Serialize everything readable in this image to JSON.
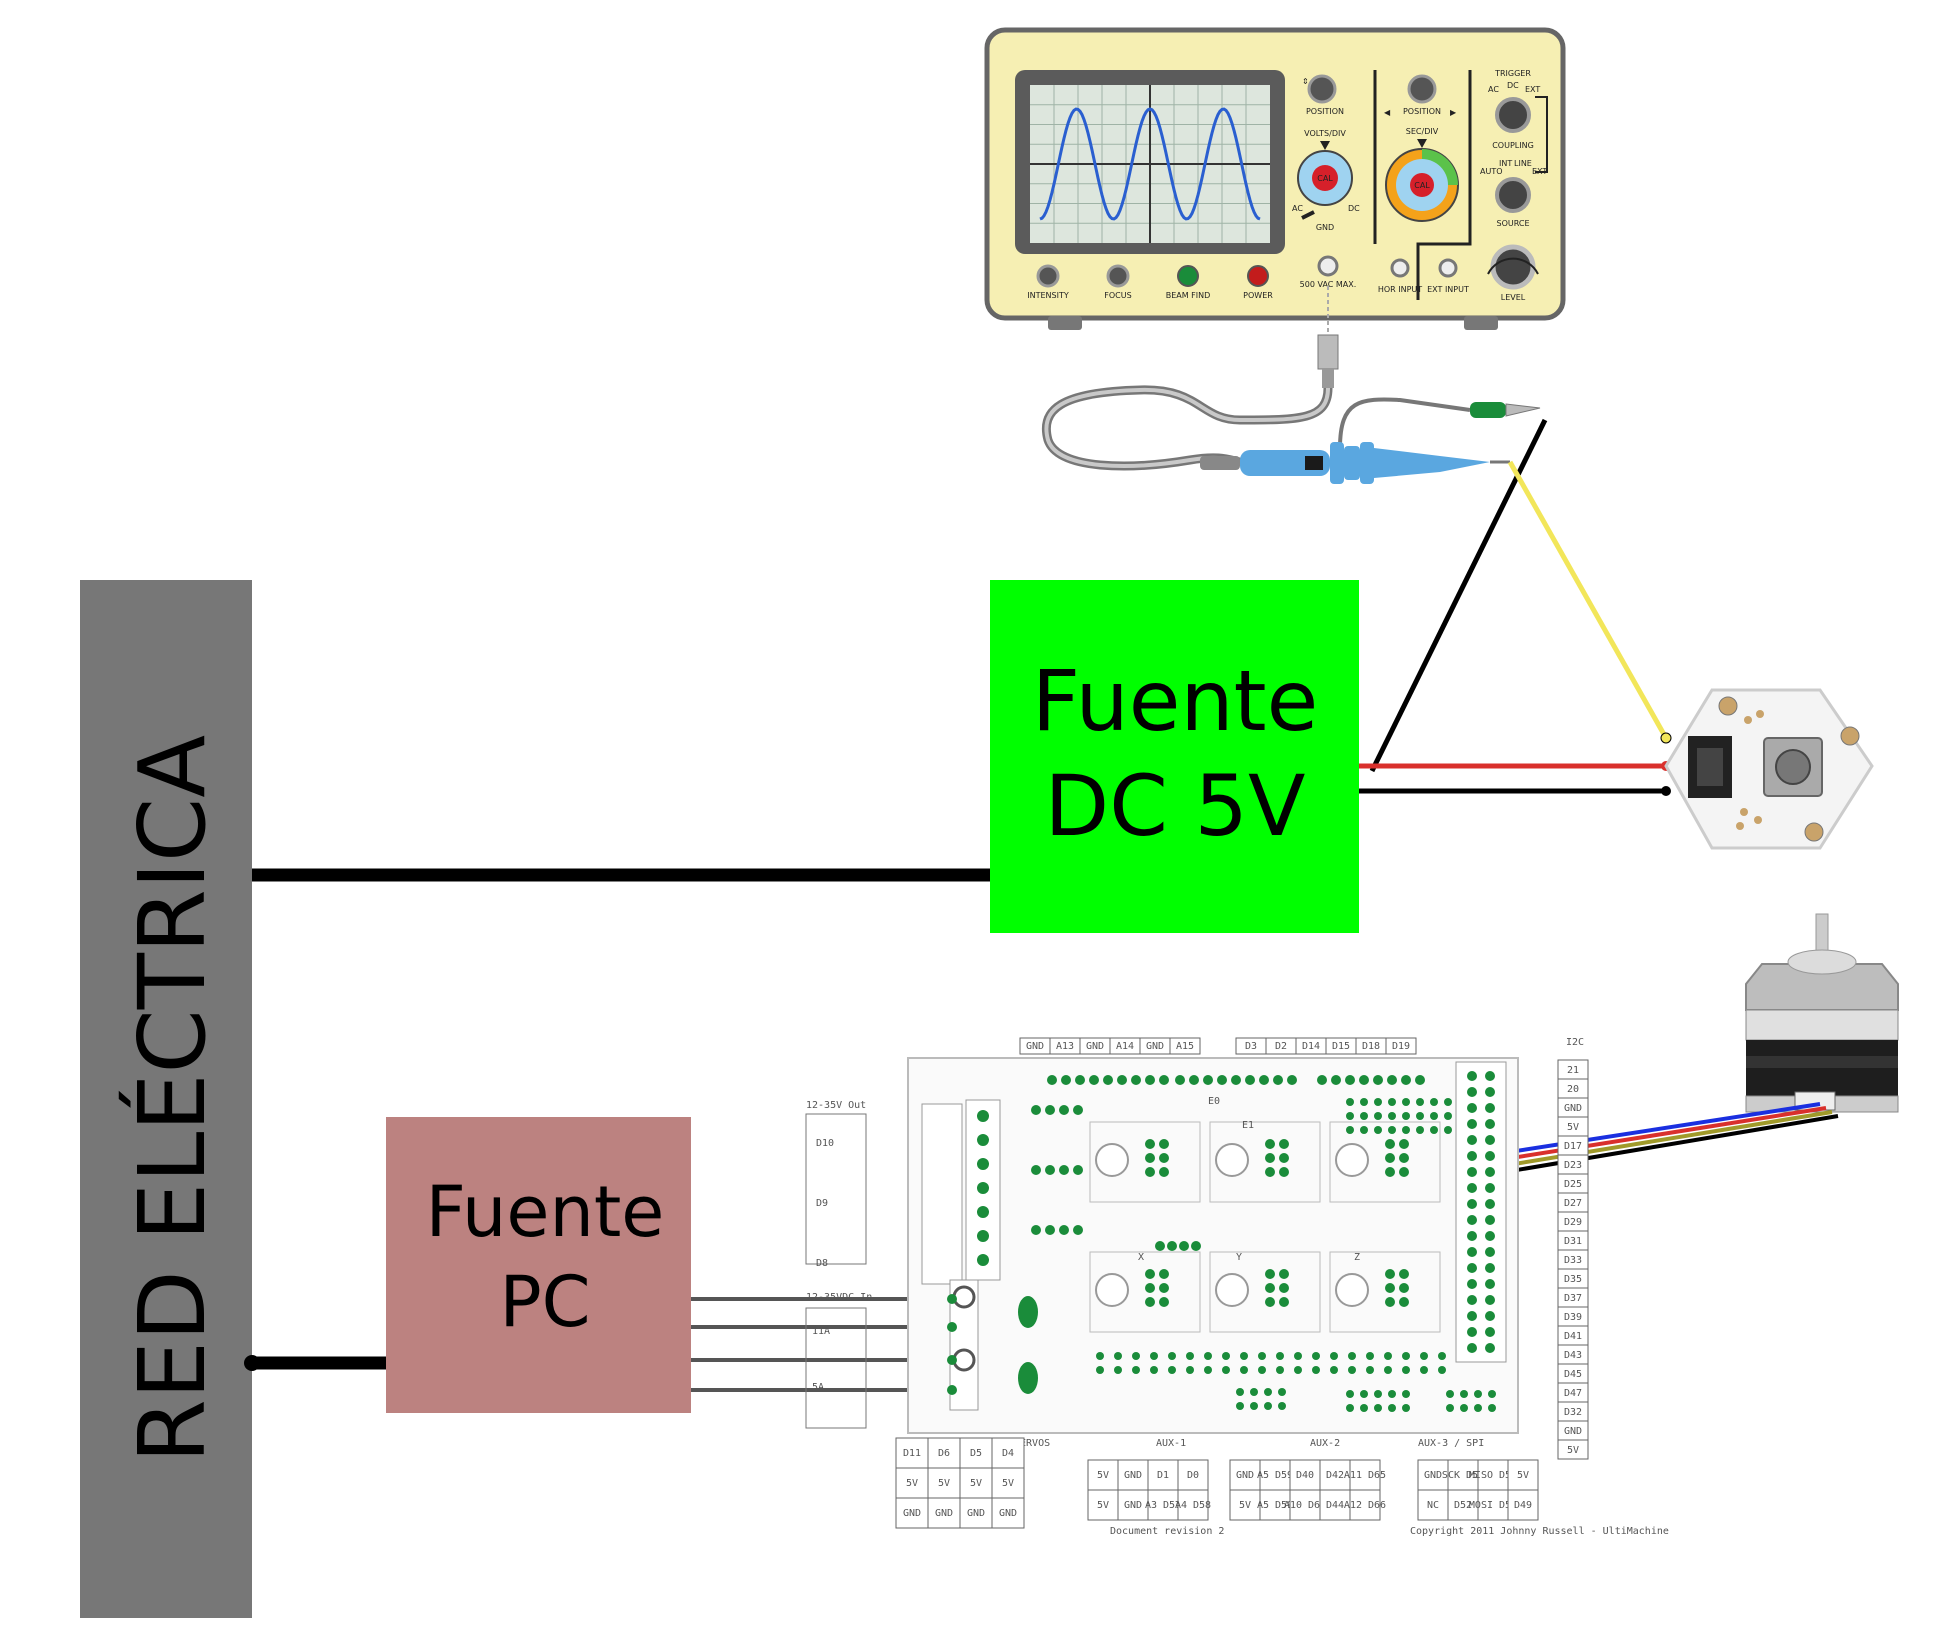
{
  "red_electrica": {
    "label": "RED ELÉCTRICA"
  },
  "fuente_dc": {
    "line1": "Fuente",
    "line2": "DC 5V"
  },
  "fuente_pc": {
    "line1": "Fuente",
    "line2": "PC"
  },
  "oscilloscope": {
    "position_label": "POSITION",
    "volts_div": "VOLTS/DIV",
    "sec_div": "SEC/DIV",
    "trigger": "TRIGGER",
    "coupling": "COUPLING",
    "source": "SOURCE",
    "level": "LEVEL",
    "ac": "AC",
    "dc": "DC",
    "gnd": "GND",
    "int": "INT",
    "line": "LINE",
    "ext": "EXT",
    "auto": "AUTO",
    "cal": "CAL",
    "intensity": "INTENSITY",
    "focus": "FOCUS",
    "beam_find": "BEAM FIND",
    "power": "POWER",
    "vac_max": "500 VAC MAX.",
    "hor_input": "HOR INPUT",
    "ext_input": "EXT INPUT"
  },
  "ramps": {
    "top_header_a": [
      "GND",
      "A13",
      "GND",
      "A14",
      "GND",
      "A15"
    ],
    "top_header_b": [
      "D3",
      "D2",
      "D14",
      "D15",
      "D18",
      "D19"
    ],
    "i2c": "I2C",
    "out_label": "12-35V Out",
    "in_label": "12-35VDC In",
    "d_labels": [
      "D10",
      "D9",
      "D8"
    ],
    "a_labels": [
      "11A",
      "5A"
    ],
    "side_right": [
      "21",
      "20",
      "GND",
      "5V",
      "D17",
      "D23",
      "D25",
      "D27",
      "D29",
      "D31",
      "D33",
      "D35",
      "D37",
      "D39",
      "D41",
      "D43",
      "D45",
      "D47",
      "D32",
      "GND",
      "5V"
    ],
    "servos_label": "SERVOS",
    "aux1_label": "AUX-1",
    "aux2_label": "AUX-2",
    "aux3_label": "AUX-3 / SPI",
    "servo_rows": [
      [
        "D11",
        "D6",
        "D5",
        "D4"
      ],
      [
        "5V",
        "5V",
        "5V",
        "5V"
      ],
      [
        "GND",
        "GND",
        "GND",
        "GND"
      ]
    ],
    "aux1_rows": [
      [
        "5V",
        "GND",
        "D1",
        "D0"
      ],
      [
        "5V",
        "GND",
        "A3 D57",
        "A4 D58"
      ]
    ],
    "aux2_rows": [
      [
        "GND",
        "A5 D59",
        "D40",
        "D42",
        "A11 D65"
      ],
      [
        "5V",
        "A5 D59",
        "A10 D64",
        "D44",
        "A12 D66"
      ]
    ],
    "aux3_rows": [
      [
        "GND",
        "SCK D52",
        "MISO D50",
        "5V"
      ],
      [
        "NC",
        "D52",
        "MOSI D51",
        "D49"
      ]
    ],
    "axis_labels": [
      "X",
      "Y",
      "Z",
      "E0",
      "E1"
    ],
    "doc_rev": "Document revision 2",
    "copyright": "Copyright 2011 Johnny Russell - UltiMachine"
  },
  "colors": {
    "grid_gray": "#777777",
    "dc_green": "#00ff00",
    "pc_rose": "#bc8280",
    "osc_body": "#f6efb3",
    "screen_bg": "#dde6dd",
    "wave": "#2a5fd0",
    "wire_black": "#000000",
    "wire_red": "#d9302c",
    "wire_yellow": "#f2e65a",
    "wire_blue": "#1a2fe0",
    "probe_blue": "#5aa7e0",
    "pcb_green": "#1a8c3a"
  }
}
